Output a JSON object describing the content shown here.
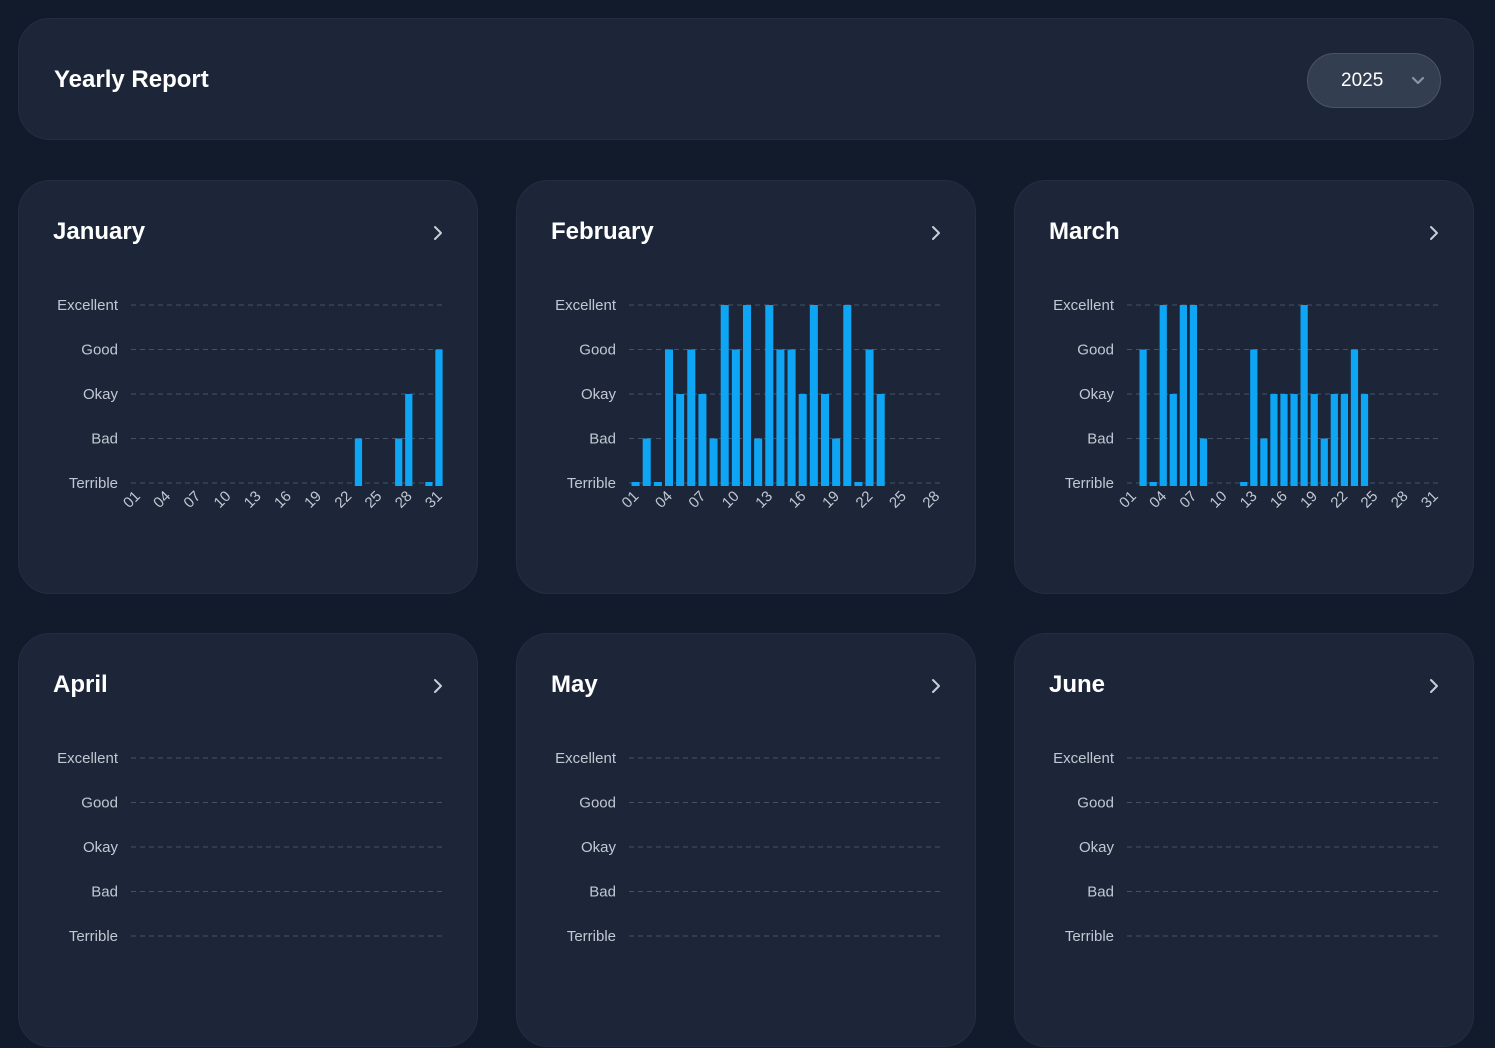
{
  "header": {
    "title": "Yearly Report",
    "year_select": {
      "value": "2025",
      "icon": "chevron-down-icon"
    }
  },
  "colors": {
    "bar": "#0ea5f5",
    "background": "#121b2b",
    "card": "#1c2638",
    "grid": "#465165"
  },
  "scale": [
    "Terrible",
    "Bad",
    "Okay",
    "Good",
    "Excellent"
  ],
  "cards": [
    {
      "title": "January",
      "icon": "chevron-right-icon"
    },
    {
      "title": "February",
      "icon": "chevron-right-icon"
    },
    {
      "title": "March",
      "icon": "chevron-right-icon"
    },
    {
      "title": "April",
      "icon": "chevron-right-icon"
    },
    {
      "title": "May",
      "icon": "chevron-right-icon"
    },
    {
      "title": "June",
      "icon": "chevron-right-icon"
    }
  ],
  "chart_data": [
    {
      "type": "bar",
      "month": "January",
      "y_categories": [
        "Terrible",
        "Bad",
        "Okay",
        "Good",
        "Excellent"
      ],
      "x": [
        "01",
        "02",
        "03",
        "04",
        "05",
        "06",
        "07",
        "08",
        "09",
        "10",
        "11",
        "12",
        "13",
        "14",
        "15",
        "16",
        "17",
        "18",
        "19",
        "20",
        "21",
        "22",
        "23",
        "24",
        "25",
        "26",
        "27",
        "28",
        "29",
        "30",
        "31"
      ],
      "x_ticks": [
        "01",
        "04",
        "07",
        "10",
        "13",
        "16",
        "19",
        "22",
        "25",
        "28",
        "31"
      ],
      "values": [
        null,
        null,
        null,
        null,
        null,
        null,
        null,
        null,
        null,
        null,
        null,
        null,
        null,
        null,
        null,
        null,
        null,
        null,
        null,
        null,
        null,
        null,
        1,
        null,
        null,
        null,
        1,
        2,
        null,
        0,
        3
      ]
    },
    {
      "type": "bar",
      "month": "February",
      "y_categories": [
        "Terrible",
        "Bad",
        "Okay",
        "Good",
        "Excellent"
      ],
      "x": [
        "01",
        "02",
        "03",
        "04",
        "05",
        "06",
        "07",
        "08",
        "09",
        "10",
        "11",
        "12",
        "13",
        "14",
        "15",
        "16",
        "17",
        "18",
        "19",
        "20",
        "21",
        "22",
        "23",
        "24",
        "25",
        "26",
        "27",
        "28"
      ],
      "x_ticks": [
        "01",
        "04",
        "07",
        "10",
        "13",
        "16",
        "19",
        "22",
        "25",
        "28"
      ],
      "values": [
        0,
        1,
        0,
        3,
        2,
        3,
        2,
        1,
        4,
        3,
        4,
        1,
        4,
        3,
        3,
        2,
        4,
        2,
        1,
        4,
        0,
        3,
        2,
        null,
        null,
        null,
        null,
        null
      ]
    },
    {
      "type": "bar",
      "month": "March",
      "y_categories": [
        "Terrible",
        "Bad",
        "Okay",
        "Good",
        "Excellent"
      ],
      "x": [
        "01",
        "02",
        "03",
        "04",
        "05",
        "06",
        "07",
        "08",
        "09",
        "10",
        "11",
        "12",
        "13",
        "14",
        "15",
        "16",
        "17",
        "18",
        "19",
        "20",
        "21",
        "22",
        "23",
        "24",
        "25",
        "26",
        "27",
        "28",
        "29",
        "30",
        "31"
      ],
      "x_ticks": [
        "01",
        "04",
        "07",
        "10",
        "13",
        "16",
        "19",
        "22",
        "25",
        "28",
        "31"
      ],
      "values": [
        null,
        3,
        0,
        4,
        2,
        4,
        4,
        1,
        null,
        null,
        null,
        0,
        3,
        1,
        2,
        2,
        2,
        4,
        2,
        1,
        2,
        2,
        3,
        2,
        null,
        null,
        null,
        null,
        null,
        null,
        null
      ]
    }
  ]
}
